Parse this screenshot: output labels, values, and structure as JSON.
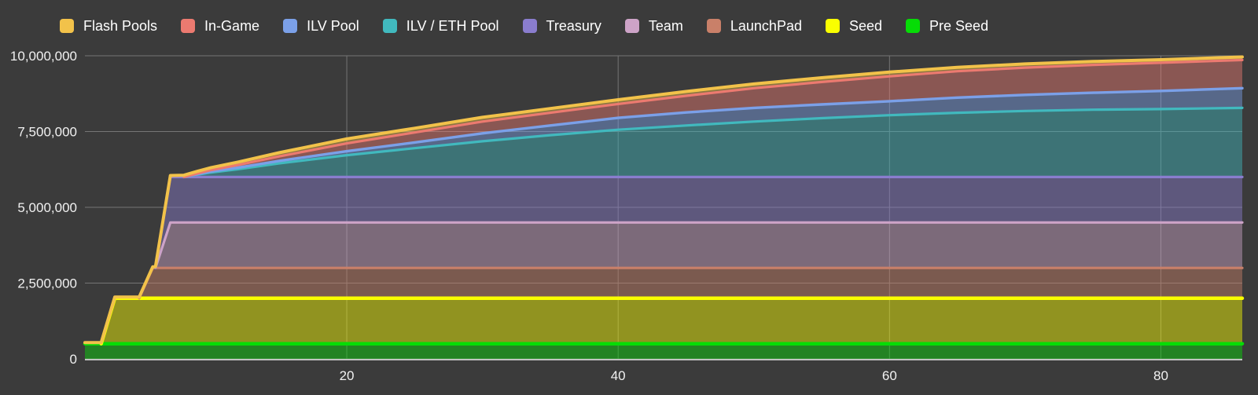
{
  "page": {
    "background": "#3b3b3b",
    "text_color": "#f1f1f1"
  },
  "legend": {
    "position": "top",
    "items": [
      {
        "label": "Flash Pools",
        "color": "#F2C24A"
      },
      {
        "label": "In-Game",
        "color": "#EC7A70"
      },
      {
        "label": "ILV Pool",
        "color": "#7BA0E8"
      },
      {
        "label": "ILV / ETH Pool",
        "color": "#41B9BE"
      },
      {
        "label": "Treasury",
        "color": "#8A7DCE"
      },
      {
        "label": "Team",
        "color": "#CDA3C7"
      },
      {
        "label": "LaunchPad",
        "color": "#C98069"
      },
      {
        "label": "Seed",
        "color": "#FAFF00"
      },
      {
        "label": "Pre Seed",
        "color": "#06DC06"
      }
    ]
  },
  "chart_data": {
    "type": "area",
    "stacked": true,
    "title": "",
    "xlabel": "",
    "ylabel": "",
    "grid": true,
    "xlim": [
      0.7,
      86
    ],
    "ylim": [
      0,
      10000000
    ],
    "x_ticks": [
      {
        "value": 20,
        "label": "20"
      },
      {
        "value": 40,
        "label": "40"
      },
      {
        "value": 60,
        "label": "60"
      },
      {
        "value": 80,
        "label": "80"
      }
    ],
    "y_ticks": [
      {
        "value": 0,
        "label": "0"
      },
      {
        "value": 2500000,
        "label": "2,500,000"
      },
      {
        "value": 5000000,
        "label": "5,000,000"
      },
      {
        "value": 7500000,
        "label": "7,500,000"
      },
      {
        "value": 10000000,
        "label": "10,000,000"
      }
    ],
    "x": [
      0.7,
      1.9,
      2.9,
      4.7,
      5.7,
      5.9,
      7,
      8,
      9,
      10,
      12,
      15,
      20,
      25,
      30,
      35,
      40,
      45,
      50,
      55,
      60,
      65,
      70,
      75,
      80,
      86
    ],
    "series": [
      {
        "name": "Pre Seed",
        "color": "#06DC06",
        "values": [
          500000,
          500000,
          500000,
          500000,
          500000,
          500000,
          500000,
          500000,
          500000,
          500000,
          500000,
          500000,
          500000,
          500000,
          500000,
          500000,
          500000,
          500000,
          500000,
          500000,
          500000,
          500000,
          500000,
          500000,
          500000,
          500000
        ]
      },
      {
        "name": "Seed",
        "color": "#FAFF00",
        "values": [
          0,
          0,
          1500000,
          1500000,
          1500000,
          1500000,
          1500000,
          1500000,
          1500000,
          1500000,
          1500000,
          1500000,
          1500000,
          1500000,
          1500000,
          1500000,
          1500000,
          1500000,
          1500000,
          1500000,
          1500000,
          1500000,
          1500000,
          1500000,
          1500000,
          1500000
        ]
      },
      {
        "name": "LaunchPad",
        "color": "#C98069",
        "values": [
          0,
          0,
          0,
          0,
          1000000,
          1000000,
          1000000,
          1000000,
          1000000,
          1000000,
          1000000,
          1000000,
          1000000,
          1000000,
          1000000,
          1000000,
          1000000,
          1000000,
          1000000,
          1000000,
          1000000,
          1000000,
          1000000,
          1000000,
          1000000,
          1000000
        ]
      },
      {
        "name": "Team",
        "color": "#CDA3C7",
        "values": [
          0,
          0,
          0,
          0,
          0,
          0,
          1500000,
          1500000,
          1500000,
          1500000,
          1500000,
          1500000,
          1500000,
          1500000,
          1500000,
          1500000,
          1500000,
          1500000,
          1500000,
          1500000,
          1500000,
          1500000,
          1500000,
          1500000,
          1500000,
          1500000
        ]
      },
      {
        "name": "Treasury",
        "color": "#8A7DCE",
        "values": [
          0,
          0,
          0,
          0,
          0,
          0,
          1500000,
          1500000,
          1500000,
          1500000,
          1500000,
          1500000,
          1500000,
          1500000,
          1500000,
          1500000,
          1500000,
          1500000,
          1500000,
          1500000,
          1500000,
          1500000,
          1500000,
          1500000,
          1500000,
          1500000
        ]
      },
      {
        "name": "ILV / ETH Pool",
        "color": "#41B9BE",
        "values": [
          0,
          0,
          0,
          0,
          0,
          0,
          0,
          0,
          80000,
          150000,
          260000,
          450000,
          720000,
          950000,
          1180000,
          1380000,
          1560000,
          1700000,
          1830000,
          1940000,
          2040000,
          2120000,
          2180000,
          2220000,
          2240000,
          2280000
        ]
      },
      {
        "name": "ILV Pool",
        "color": "#7BA0E8",
        "values": [
          0,
          0,
          0,
          0,
          0,
          0,
          0,
          0,
          15000,
          30000,
          50000,
          80000,
          130000,
          190000,
          260000,
          320000,
          390000,
          430000,
          450000,
          455000,
          460000,
          500000,
          530000,
          560000,
          600000,
          650000
        ]
      },
      {
        "name": "In-Game",
        "color": "#EC7A70",
        "values": [
          0,
          0,
          0,
          0,
          0,
          0,
          0,
          0,
          25000,
          50000,
          90000,
          150000,
          260000,
          330000,
          390000,
          420000,
          460000,
          550000,
          650000,
          740000,
          820000,
          870000,
          900000,
          920000,
          930000,
          930000
        ]
      },
      {
        "name": "Flash Pools",
        "color": "#F2C24A",
        "values": [
          40000,
          40000,
          40000,
          40000,
          40000,
          40000,
          50000,
          60000,
          70000,
          80000,
          95000,
          120000,
          150000,
          140000,
          140000,
          140000,
          140000,
          140000,
          140000,
          140000,
          140000,
          130000,
          120000,
          110000,
          100000,
          100000
        ]
      }
    ]
  }
}
